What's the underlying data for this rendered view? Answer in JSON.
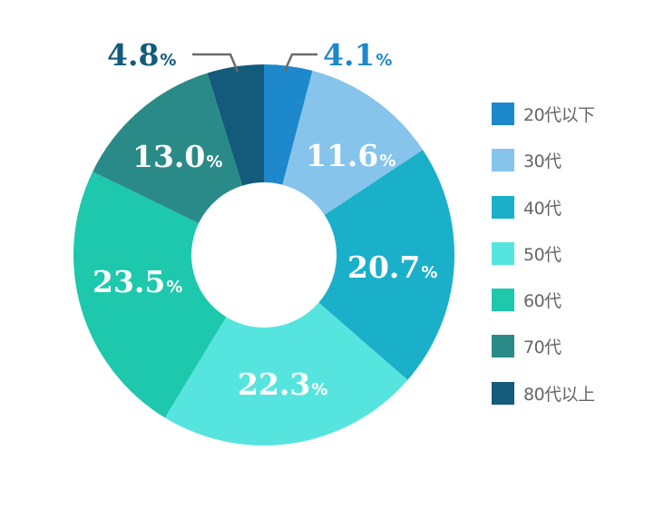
{
  "chart_data": {
    "type": "pie",
    "variant": "donut",
    "title": "",
    "categories": [
      "20代以下",
      "30代",
      "40代",
      "50代",
      "60代",
      "70代",
      "80代以上"
    ],
    "values": [
      4.1,
      11.6,
      20.7,
      22.3,
      23.5,
      13.0,
      4.8
    ],
    "unit": "%",
    "colors": [
      "#1e88cc",
      "#86c4eb",
      "#1bb0c9",
      "#56e5de",
      "#1dc8ad",
      "#2a8a87",
      "#135a7b"
    ],
    "labels": [
      "4.1",
      "11.6",
      "20.7",
      "22.3",
      "23.5",
      "13.0",
      "4.8"
    ],
    "start_angle_deg": 0,
    "direction": "clockwise",
    "legend_position": "right",
    "outside_labels": [
      "20代以下",
      "80代以上"
    ]
  },
  "legend": {
    "items": [
      {
        "label": "20代以下",
        "color": "#1e88cc"
      },
      {
        "label": "30代",
        "color": "#86c4eb"
      },
      {
        "label": "40代",
        "color": "#1bb0c9"
      },
      {
        "label": "50代",
        "color": "#56e5de"
      },
      {
        "label": "60代",
        "color": "#1dc8ad"
      },
      {
        "label": "70代",
        "color": "#2a8a87"
      },
      {
        "label": "80代以上",
        "color": "#135a7b"
      }
    ]
  },
  "percent_sign": "%",
  "leader_line_color": "#6b6b6b"
}
